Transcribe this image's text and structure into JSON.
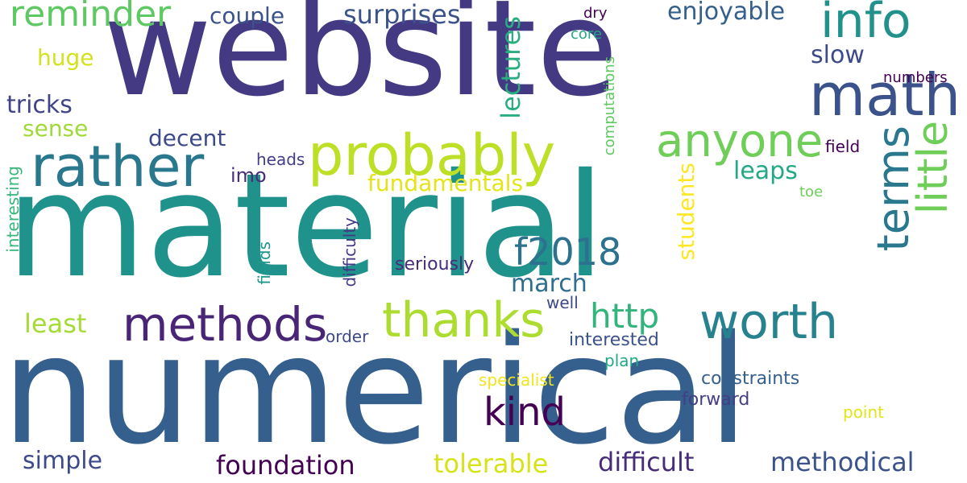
{
  "words": [
    "website",
    "material",
    "numerical",
    "probably",
    "rather",
    "math",
    "info",
    "reminder",
    "methods",
    "thanks",
    "worth",
    "anyone",
    "f2018",
    "kind",
    "http",
    "little",
    "terms",
    "surprises",
    "couple",
    "enjoyable",
    "huge",
    "tricks",
    "sense",
    "decent",
    "imo",
    "fundamentals",
    "leaps",
    "slow",
    "march",
    "least",
    "foundation",
    "simple",
    "tolerable",
    "difficult",
    "methodical",
    "constraints",
    "forward",
    "interested",
    "seriously",
    "order",
    "well",
    "plan",
    "specialist",
    "point",
    "heads",
    "field",
    "toe",
    "numbers",
    "dry",
    "core",
    "lectures",
    "students",
    "computations",
    "difficulty",
    "interesting",
    "fields"
  ]
}
